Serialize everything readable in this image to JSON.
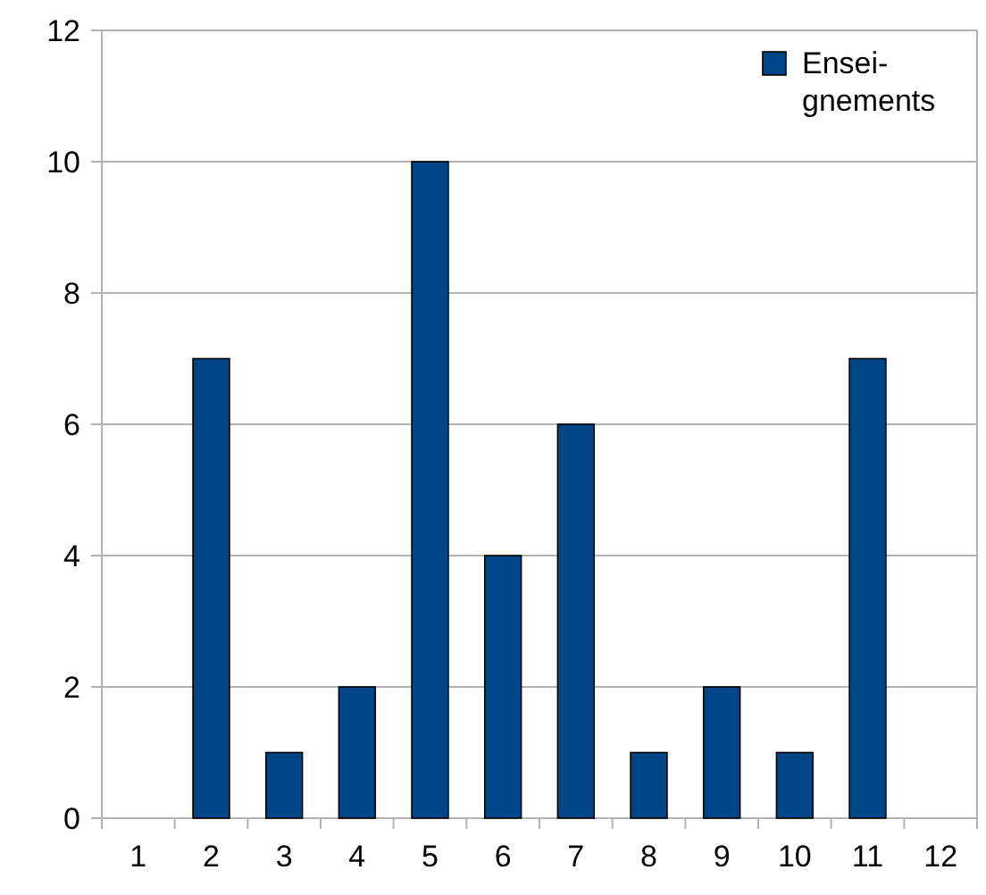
{
  "chart_data": {
    "type": "bar",
    "categories": [
      "1",
      "2",
      "3",
      "4",
      "5",
      "6",
      "7",
      "8",
      "9",
      "10",
      "11",
      "12"
    ],
    "series": [
      {
        "name": "Ensei-\ngnements",
        "color": "#004586",
        "values": [
          0,
          7,
          1,
          2,
          10,
          4,
          6,
          1,
          2,
          1,
          7,
          0
        ]
      }
    ],
    "ylim": [
      0,
      12
    ],
    "yticks": [
      0,
      2,
      4,
      6,
      8,
      10,
      12
    ],
    "grid": "y",
    "legend": "top right"
  }
}
